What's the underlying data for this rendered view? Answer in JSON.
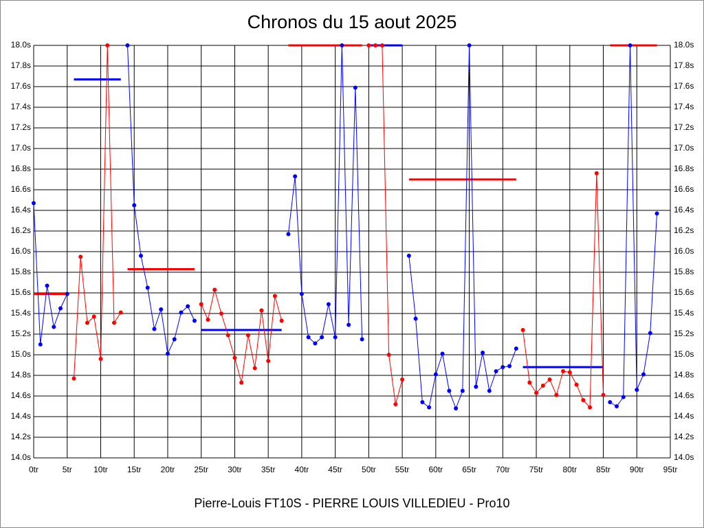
{
  "chart_data": {
    "type": "line",
    "title": "Chronos du 15 aout 2025",
    "footer": "Pierre-Louis FT10S - PIERRE LOUIS VILLEDIEU - Pro10",
    "xlim": [
      0,
      95
    ],
    "xticks": [
      {
        "value": 0,
        "label": "0tr"
      },
      {
        "value": 5,
        "label": "5tr"
      },
      {
        "value": 10,
        "label": "10tr"
      },
      {
        "value": 15,
        "label": "15tr"
      },
      {
        "value": 20,
        "label": "20tr"
      },
      {
        "value": 25,
        "label": "25tr"
      },
      {
        "value": 30,
        "label": "30tr"
      },
      {
        "value": 35,
        "label": "35tr"
      },
      {
        "value": 40,
        "label": "40tr"
      },
      {
        "value": 45,
        "label": "45tr"
      },
      {
        "value": 50,
        "label": "50tr"
      },
      {
        "value": 55,
        "label": "55tr"
      },
      {
        "value": 60,
        "label": "60tr"
      },
      {
        "value": 65,
        "label": "65tr"
      },
      {
        "value": 70,
        "label": "70tr"
      },
      {
        "value": 75,
        "label": "75tr"
      },
      {
        "value": 80,
        "label": "80tr"
      },
      {
        "value": 85,
        "label": "85tr"
      },
      {
        "value": 90,
        "label": "90tr"
      },
      {
        "value": 95,
        "label": "95tr"
      }
    ],
    "ylim": [
      14.0,
      18.0
    ],
    "yticks": [
      {
        "value": 14.0,
        "label": "14.0s"
      },
      {
        "value": 14.2,
        "label": "14.2s"
      },
      {
        "value": 14.4,
        "label": "14.4s"
      },
      {
        "value": 14.6,
        "label": "14.6s"
      },
      {
        "value": 14.8,
        "label": "14.8s"
      },
      {
        "value": 15.0,
        "label": "15.0s"
      },
      {
        "value": 15.2,
        "label": "15.2s"
      },
      {
        "value": 15.4,
        "label": "15.4s"
      },
      {
        "value": 15.6,
        "label": "15.6s"
      },
      {
        "value": 15.8,
        "label": "15.8s"
      },
      {
        "value": 16.0,
        "label": "16.0s"
      },
      {
        "value": 16.2,
        "label": "16.2s"
      },
      {
        "value": 16.4,
        "label": "16.4s"
      },
      {
        "value": 16.6,
        "label": "16.6s"
      },
      {
        "value": 16.8,
        "label": "16.8s"
      },
      {
        "value": 17.0,
        "label": "17.0s"
      },
      {
        "value": 17.2,
        "label": "17.2s"
      },
      {
        "value": 17.4,
        "label": "17.4s"
      },
      {
        "value": 17.6,
        "label": "17.6s"
      },
      {
        "value": 17.8,
        "label": "17.8s"
      },
      {
        "value": 18.0,
        "label": "18.0s"
      }
    ],
    "grid": true,
    "series": [
      {
        "color": "#0000ff",
        "x": [
          0,
          1,
          2,
          3,
          4,
          5
        ],
        "values": [
          16.47,
          15.1,
          15.67,
          15.27,
          15.45,
          15.59
        ]
      },
      {
        "color": "#ff0000",
        "x": [
          6,
          7,
          8,
          9,
          10,
          11,
          12,
          13
        ],
        "values": [
          14.77,
          15.95,
          15.31,
          15.37,
          14.96,
          18.0,
          15.31,
          15.41
        ]
      },
      {
        "color": "#0000ff",
        "x": [
          14,
          15,
          16,
          17,
          18,
          19,
          20,
          21,
          22,
          23,
          24
        ],
        "values": [
          18.0,
          16.45,
          15.96,
          15.65,
          15.25,
          15.44,
          15.01,
          15.15,
          15.41,
          15.47,
          15.33
        ]
      },
      {
        "color": "#ff0000",
        "x": [
          25,
          26,
          27,
          28,
          29,
          30,
          31,
          32,
          33,
          34,
          35,
          36,
          37
        ],
        "values": [
          15.49,
          15.34,
          15.63,
          15.4,
          15.19,
          14.97,
          14.73,
          15.19,
          14.87,
          15.43,
          14.94,
          15.57,
          15.33
        ]
      },
      {
        "color": "#0000ff",
        "x": [
          38,
          39,
          40,
          41,
          42,
          43,
          44,
          45,
          46,
          47,
          48,
          49
        ],
        "values": [
          16.17,
          16.73,
          15.59,
          15.17,
          15.11,
          15.17,
          15.49,
          15.17,
          18.0,
          15.29,
          17.59,
          15.15
        ]
      },
      {
        "color": "#ff0000",
        "x": [
          50,
          51,
          52,
          53,
          54,
          55
        ],
        "values": [
          18.0,
          18.0,
          18.0,
          15.0,
          14.52,
          14.76
        ]
      },
      {
        "color": "#0000ff",
        "x": [
          56,
          57,
          58,
          59,
          60,
          61,
          62,
          63,
          64,
          65,
          66,
          67,
          68,
          69,
          70,
          71,
          72
        ],
        "values": [
          15.96,
          15.35,
          14.54,
          14.49,
          14.81,
          15.01,
          14.65,
          14.48,
          14.65,
          18.0,
          14.69,
          15.02,
          14.65,
          14.84,
          14.88,
          14.89,
          15.06
        ]
      },
      {
        "color": "#ff0000",
        "x": [
          73,
          74,
          75,
          76,
          77,
          78,
          79,
          80,
          81,
          82,
          83,
          84,
          85
        ],
        "values": [
          15.24,
          14.73,
          14.63,
          14.7,
          14.76,
          14.61,
          14.84,
          14.83,
          14.71,
          14.56,
          14.49,
          16.76,
          14.61
        ]
      },
      {
        "color": "#0000ff",
        "x": [
          86,
          87,
          88,
          89,
          90,
          91,
          92,
          93
        ],
        "values": [
          14.54,
          14.5,
          14.59,
          18.0,
          14.66,
          14.81,
          15.21,
          16.37
        ]
      }
    ],
    "averages": [
      {
        "color": "#ff0000",
        "x": [
          0,
          5
        ],
        "value": 15.59
      },
      {
        "color": "#0000ff",
        "x": [
          6,
          13
        ],
        "value": 17.67
      },
      {
        "color": "#ff0000",
        "x": [
          14,
          24
        ],
        "value": 15.83
      },
      {
        "color": "#0000ff",
        "x": [
          25,
          37
        ],
        "value": 15.24
      },
      {
        "color": "#ff0000",
        "x": [
          38,
          49
        ],
        "value": 18.0
      },
      {
        "color": "#0000ff",
        "x": [
          50,
          55
        ],
        "value": 18.0
      },
      {
        "color": "#ff0000",
        "x": [
          56,
          72
        ],
        "value": 16.7
      },
      {
        "color": "#0000ff",
        "x": [
          73,
          85
        ],
        "value": 14.88
      },
      {
        "color": "#ff0000",
        "x": [
          86,
          93
        ],
        "value": 18.0
      }
    ]
  }
}
